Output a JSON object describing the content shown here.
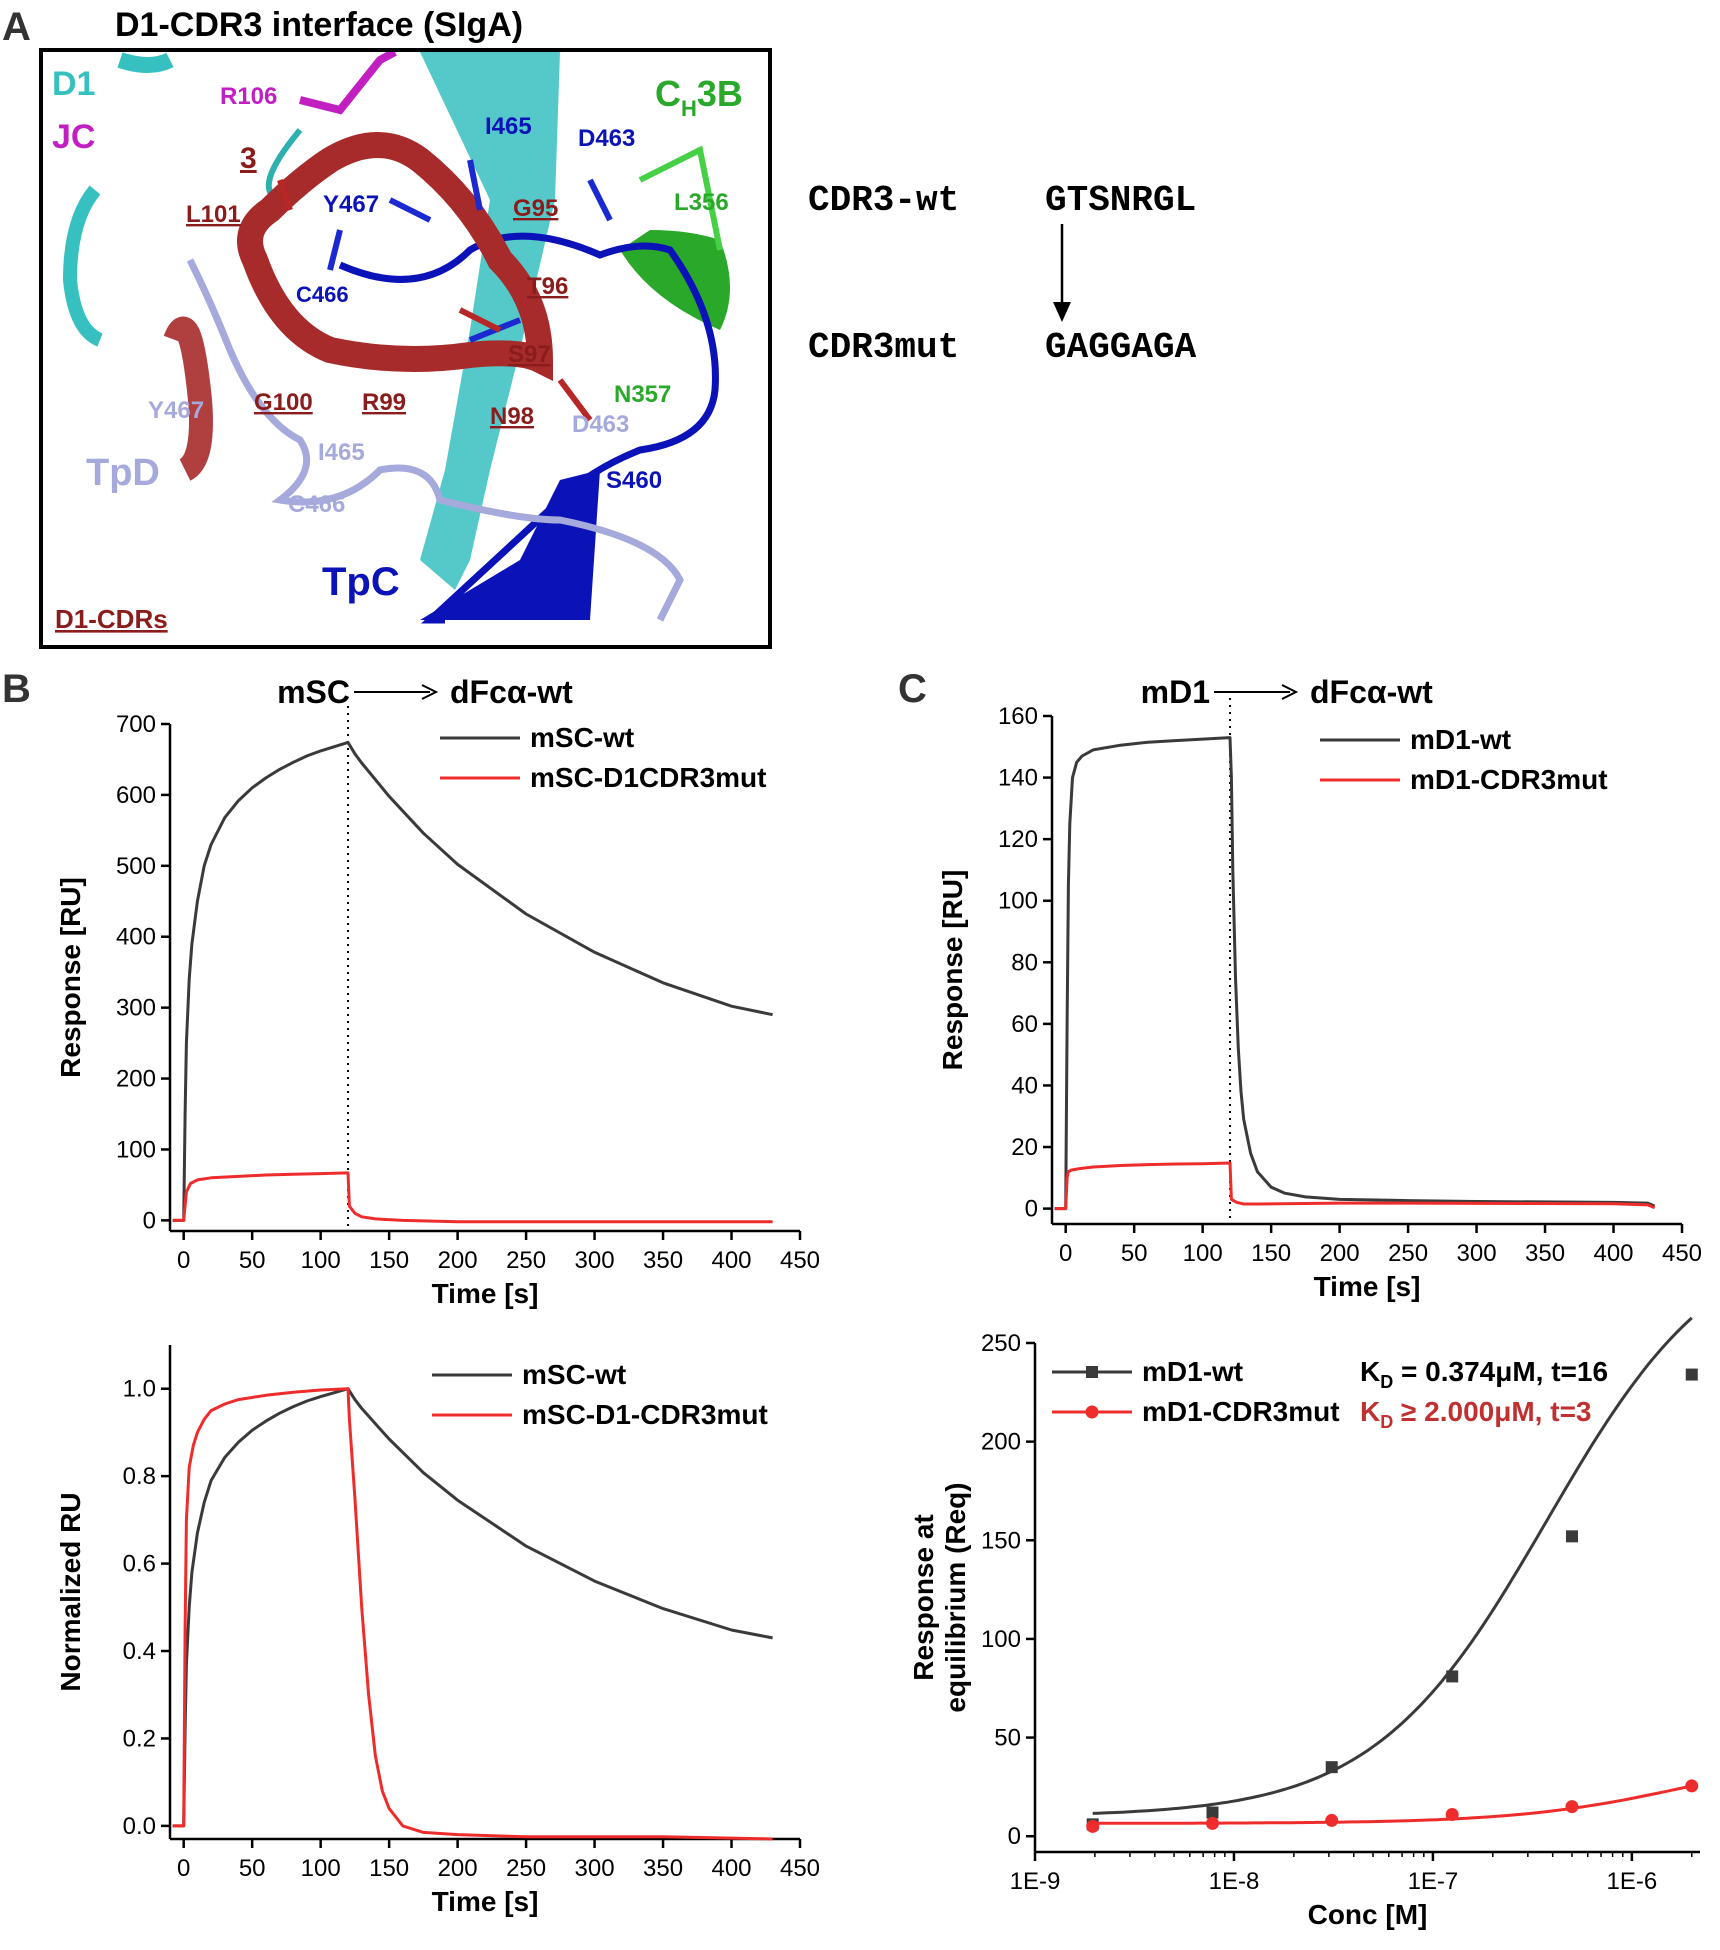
{
  "panel_a": {
    "letter": "A",
    "title": "D1-CDR3 interface (SIgA)",
    "labels": {
      "d1": "D1",
      "jc": "JC",
      "r106": "R106",
      "loop3": "3",
      "i465_top": "I465",
      "d463_top": "D463",
      "ch": "C",
      "ch_sub": "H",
      "ch_rest": "3B",
      "l356": "L356",
      "l101": "L101",
      "y467_top": "Y467",
      "g95": "G95",
      "c466_top": "C466",
      "t96": "T96",
      "s97": "S97",
      "n357": "N357",
      "y467_low": "Y467",
      "g100": "G100",
      "r99": "R99",
      "n98": "N98",
      "d463_low": "D463",
      "tpd": "TpD",
      "i465_low": "I465",
      "s460": "S460",
      "c466_low": "C466",
      "tpc": "TpC",
      "d1cdrs": "D1-CDRs"
    },
    "colors": {
      "cdr": "#8b1c1c",
      "d1": "#37c0c0",
      "jc": "#c21fc2",
      "tpc": "#0a12b8",
      "tpd": "#a6a9dc",
      "ch3b": "#2aa82a"
    }
  },
  "sequences": {
    "wt_label": "CDR3-wt",
    "wt_seq": "GTSNRGL",
    "mut_label": "CDR3mut",
    "mut_seq": "GAGGAGA"
  },
  "chart_data": [
    {
      "id": "B1",
      "panel_letter": "B",
      "type": "line",
      "title": "mSC",
      "title_target": "dFcα-wt",
      "xlabel": "Time [s]",
      "ylabel": "Response [RU]",
      "xlim": [
        -10,
        450
      ],
      "ylim": [
        -15,
        700
      ],
      "xticks": [
        0,
        50,
        100,
        150,
        200,
        250,
        300,
        350,
        400,
        450
      ],
      "yticks": [
        0,
        100,
        200,
        300,
        400,
        500,
        600,
        700
      ],
      "ytick_decimals": 0,
      "injection_end": 120,
      "legend": "top-right",
      "series": [
        {
          "name": "mSC-wt",
          "color": "#3a3a3a",
          "x": [
            -8,
            0,
            1,
            2,
            4,
            6,
            10,
            15,
            20,
            30,
            40,
            50,
            60,
            70,
            80,
            90,
            100,
            110,
            120,
            125,
            130,
            150,
            175,
            200,
            250,
            300,
            350,
            400,
            430
          ],
          "y": [
            0,
            0,
            150,
            250,
            340,
            390,
            450,
            500,
            530,
            568,
            592,
            610,
            624,
            636,
            646,
            655,
            662,
            668,
            674,
            658,
            645,
            598,
            546,
            502,
            432,
            378,
            335,
            302,
            290
          ]
        },
        {
          "name": "mSC-D1CDR3mut",
          "color": "#ee2c2c",
          "x": [
            -8,
            0,
            2,
            5,
            10,
            20,
            40,
            60,
            80,
            100,
            120,
            121,
            125,
            130,
            140,
            160,
            200,
            300,
            430
          ],
          "y": [
            0,
            0,
            40,
            52,
            57,
            60,
            62,
            64,
            65,
            66,
            67,
            20,
            10,
            5,
            2,
            0,
            -2,
            -2,
            -2
          ]
        }
      ]
    },
    {
      "id": "B2",
      "type": "line",
      "xlabel": "Time [s]",
      "ylabel": "Normalized RU",
      "xlim": [
        -10,
        450
      ],
      "ylim": [
        -0.03,
        1.1
      ],
      "xticks": [
        0,
        50,
        100,
        150,
        200,
        250,
        300,
        350,
        400,
        450
      ],
      "yticks": [
        0.0,
        0.2,
        0.4,
        0.6,
        0.8,
        1.0
      ],
      "ytick_decimals": 1,
      "legend": "top-right",
      "series": [
        {
          "name": "mSC-wt",
          "color": "#3a3a3a",
          "x": [
            -8,
            0,
            1,
            2,
            4,
            6,
            10,
            15,
            20,
            30,
            40,
            50,
            60,
            70,
            80,
            90,
            100,
            110,
            120,
            125,
            130,
            150,
            175,
            200,
            250,
            300,
            350,
            400,
            430
          ],
          "y": [
            0,
            0,
            0.22,
            0.37,
            0.5,
            0.58,
            0.67,
            0.74,
            0.79,
            0.843,
            0.878,
            0.905,
            0.926,
            0.944,
            0.959,
            0.972,
            0.982,
            0.991,
            1.0,
            0.975,
            0.955,
            0.885,
            0.808,
            0.745,
            0.64,
            0.56,
            0.497,
            0.448,
            0.43
          ]
        },
        {
          "name": "mSC-D1-CDR3mut",
          "color": "#ee2c2c",
          "x": [
            -8,
            0,
            1,
            2,
            4,
            7,
            10,
            15,
            20,
            30,
            40,
            60,
            80,
            100,
            120,
            121,
            125,
            130,
            135,
            140,
            145,
            150,
            160,
            175,
            200,
            250,
            300,
            350,
            430
          ],
          "y": [
            0,
            0,
            0.45,
            0.7,
            0.82,
            0.87,
            0.9,
            0.93,
            0.95,
            0.965,
            0.975,
            0.985,
            0.992,
            0.997,
            1.0,
            0.93,
            0.75,
            0.5,
            0.3,
            0.16,
            0.08,
            0.04,
            0.0,
            -0.015,
            -0.02,
            -0.025,
            -0.025,
            -0.025,
            -0.03
          ]
        }
      ]
    },
    {
      "id": "C1",
      "panel_letter": "C",
      "type": "line",
      "title": "mD1",
      "title_target": "dFcα-wt",
      "xlabel": "Time [s]",
      "ylabel": "Response [RU]",
      "xlim": [
        -10,
        450
      ],
      "ylim": [
        -5,
        160
      ],
      "xticks": [
        0,
        50,
        100,
        150,
        200,
        250,
        300,
        350,
        400,
        450
      ],
      "yticks": [
        0,
        20,
        40,
        60,
        80,
        100,
        120,
        140,
        160
      ],
      "ytick_decimals": 0,
      "injection_end": 120,
      "legend": "top-right",
      "series": [
        {
          "name": "mD1-wt",
          "color": "#3a3a3a",
          "x": [
            -8,
            0,
            1,
            2,
            3,
            5,
            8,
            12,
            20,
            40,
            60,
            80,
            100,
            120,
            121,
            122,
            124,
            126,
            128,
            130,
            135,
            140,
            150,
            160,
            175,
            200,
            250,
            300,
            400,
            425,
            430
          ],
          "y": [
            0,
            0,
            60,
            105,
            125,
            140,
            145,
            147,
            149,
            150.5,
            151.5,
            152,
            152.5,
            153,
            140,
            110,
            75,
            52,
            38,
            29,
            18,
            12,
            7,
            5,
            3.8,
            3,
            2.6,
            2.3,
            2,
            1.8,
            0.8
          ]
        },
        {
          "name": "mD1-CDR3mut",
          "color": "#ee2c2c",
          "x": [
            -8,
            0,
            1,
            2,
            4,
            10,
            20,
            40,
            60,
            80,
            100,
            120,
            121,
            125,
            130,
            140,
            200,
            250,
            300,
            400,
            425,
            430
          ],
          "y": [
            0,
            0,
            10,
            12,
            12.5,
            13,
            13.5,
            14,
            14.3,
            14.5,
            14.6,
            14.8,
            3,
            2,
            1.5,
            1.5,
            1.8,
            1.8,
            1.7,
            1.6,
            1.2,
            0.3
          ]
        }
      ]
    },
    {
      "id": "C2",
      "type": "scatter",
      "xlabel": "Conc [M]",
      "ylabel": "Response at equilibrium (Req)",
      "xscale": "log",
      "xlim": [
        1e-09,
        2.2e-06
      ],
      "ylim": [
        -8,
        250
      ],
      "xticks": [
        1e-09,
        1e-08,
        1e-07,
        1e-06
      ],
      "xtick_labels": [
        "1E-9",
        "1E-8",
        "1E-7",
        "1E-6"
      ],
      "yticks": [
        0,
        50,
        100,
        150,
        200,
        250
      ],
      "ytick_decimals": 0,
      "legend": "top-left",
      "series": [
        {
          "name": "mD1-wt",
          "color": "#3a3a3a",
          "marker": "square",
          "x": [
            1.95e-09,
            7.8e-09,
            3.1e-08,
            1.25e-07,
            5e-07,
            2e-06
          ],
          "y": [
            6,
            12,
            35,
            81,
            152,
            234
          ],
          "annotation": "K_D = 0.374μM, t=16",
          "fit": {
            "baseline": 10,
            "bmax": 300,
            "kd": 3.74e-07
          }
        },
        {
          "name": "mD1-CDR3mut",
          "color": "#ee2c2c",
          "marker": "circle",
          "x": [
            1.95e-09,
            7.8e-09,
            3.1e-08,
            1.25e-07,
            5e-07,
            2e-06
          ],
          "y": [
            5,
            6.5,
            8,
            11,
            15,
            25.5
          ],
          "annotation": "K_D ≥ 2.000μM, t=3",
          "fit": {
            "baseline": 6.5,
            "bmax": 38,
            "kd": 2e-06
          }
        }
      ]
    }
  ]
}
